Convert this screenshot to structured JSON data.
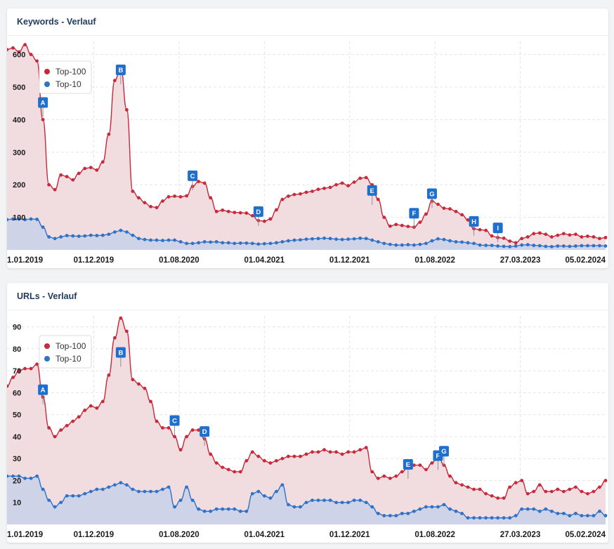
{
  "colors": {
    "top100": "#c8293b",
    "top100_fill": "#f1dde0",
    "top10": "#2f73c9",
    "top10_fill": "#cfd3e8",
    "marker": "#1f6fcf"
  },
  "legend": [
    "Top-100",
    "Top-10"
  ],
  "x_labels": [
    "1.01.2019",
    "01.12.2019",
    "01.08.2020",
    "01.04.2021",
    "01.12.2021",
    "01.08.2022",
    "27.03.2023",
    "05.02.2024"
  ],
  "chart_data": [
    {
      "type": "area",
      "title": "Keywords - Verlauf",
      "ylim": [
        0,
        640
      ],
      "yticks": [
        100,
        200,
        300,
        400,
        500,
        600
      ],
      "series": [
        {
          "name": "Top-100",
          "values": [
            615,
            620,
            608,
            630,
            600,
            580,
            400,
            200,
            185,
            230,
            225,
            215,
            235,
            250,
            253,
            245,
            270,
            355,
            520,
            560,
            430,
            180,
            160,
            145,
            133,
            130,
            150,
            163,
            165,
            163,
            166,
            195,
            210,
            205,
            160,
            118,
            122,
            118,
            115,
            114,
            113,
            105,
            90,
            88,
            95,
            123,
            155,
            165,
            170,
            172,
            177,
            180,
            186,
            189,
            192,
            200,
            205,
            197,
            208,
            220,
            222,
            200,
            155,
            100,
            73,
            78,
            75,
            72,
            70,
            85,
            110,
            150,
            140,
            128,
            126,
            118,
            108,
            92,
            65,
            62,
            60,
            43,
            38,
            36,
            27,
            22,
            35,
            40,
            50,
            52,
            48,
            40,
            45,
            50,
            46,
            48,
            40,
            42,
            40,
            35,
            38
          ]
        },
        {
          "name": "Top-10",
          "values": [
            93,
            95,
            95,
            93,
            95,
            94,
            70,
            40,
            35,
            40,
            44,
            43,
            42,
            43,
            45,
            44,
            45,
            48,
            55,
            60,
            55,
            45,
            35,
            32,
            30,
            30,
            29,
            30,
            30,
            25,
            20,
            20,
            22,
            25,
            24,
            25,
            22,
            22,
            20,
            21,
            21,
            20,
            18,
            19,
            20,
            22,
            25,
            28,
            30,
            31,
            33,
            34,
            35,
            36,
            35,
            33,
            32,
            33,
            34,
            36,
            35,
            30,
            25,
            20,
            17,
            15,
            15,
            16,
            15,
            17,
            20,
            28,
            34,
            32,
            28,
            25,
            24,
            22,
            20,
            15,
            14,
            14,
            12,
            11,
            10,
            12,
            15,
            16,
            14,
            13,
            11,
            10,
            12,
            12,
            11,
            12,
            13,
            13,
            13,
            13,
            12
          ]
        }
      ],
      "annotations": [
        {
          "label": "A",
          "x": 6,
          "y": 430
        },
        {
          "label": "B",
          "x": 19,
          "y": 530
        },
        {
          "label": "C",
          "x": 31,
          "y": 205
        },
        {
          "label": "D",
          "x": 42,
          "y": 95
        },
        {
          "label": "E",
          "x": 61,
          "y": 160
        },
        {
          "label": "F",
          "x": 68,
          "y": 90
        },
        {
          "label": "G",
          "x": 71,
          "y": 150
        },
        {
          "label": "H",
          "x": 78,
          "y": 65
        },
        {
          "label": "I",
          "x": 82,
          "y": 45
        }
      ]
    },
    {
      "type": "area",
      "title": "URLs - Verlauf",
      "ylim": [
        0,
        95
      ],
      "yticks": [
        10,
        20,
        30,
        40,
        50,
        60,
        70,
        80,
        90
      ],
      "series": [
        {
          "name": "Top-100",
          "values": [
            63,
            67,
            70,
            71,
            71,
            73,
            58,
            44,
            40,
            43,
            45,
            47,
            49,
            52,
            54,
            53,
            56,
            68,
            85,
            94,
            88,
            66,
            64,
            62,
            56,
            47,
            44,
            44,
            40,
            34,
            40,
            43,
            43,
            39,
            32,
            28,
            26,
            25,
            24,
            24,
            29,
            33,
            31,
            29,
            28,
            29,
            30,
            31,
            31,
            31,
            32,
            33,
            33,
            34,
            33,
            33,
            32,
            33,
            33,
            34,
            35,
            24,
            21,
            22,
            21,
            22,
            24,
            26,
            27,
            27,
            25,
            28,
            32,
            27,
            22,
            19,
            18,
            17,
            16,
            16,
            14,
            13,
            12,
            12,
            17,
            19,
            20,
            14,
            15,
            18,
            15,
            15,
            16,
            15,
            16,
            17,
            15,
            14,
            15,
            17,
            20
          ]
        },
        {
          "name": "Top-10",
          "values": [
            22,
            22,
            22,
            21,
            21,
            22,
            16,
            11,
            8,
            10,
            13,
            13,
            13,
            14,
            15,
            16,
            16,
            17,
            18,
            19,
            18,
            16,
            15,
            15,
            15,
            15,
            16,
            17,
            8,
            11,
            17,
            11,
            7,
            6,
            6,
            7,
            7,
            7,
            7,
            6,
            6,
            14,
            15,
            13,
            12,
            15,
            18,
            9,
            8,
            8,
            10,
            11,
            11,
            11,
            11,
            10,
            10,
            10,
            11,
            11,
            10,
            8,
            5,
            4,
            4,
            4,
            5,
            5,
            6,
            7,
            8,
            8,
            8,
            9,
            7,
            6,
            5,
            3,
            3,
            3,
            3,
            3,
            3,
            3,
            3,
            4,
            7,
            7,
            7,
            6,
            7,
            6,
            5,
            5,
            4,
            5,
            4,
            4,
            4,
            6,
            4
          ]
        }
      ],
      "annotations": [
        {
          "label": "A",
          "x": 6,
          "y": 58
        },
        {
          "label": "B",
          "x": 19,
          "y": 75
        },
        {
          "label": "C",
          "x": 28,
          "y": 44
        },
        {
          "label": "D",
          "x": 33,
          "y": 39
        },
        {
          "label": "E",
          "x": 67,
          "y": 24
        },
        {
          "label": "F",
          "x": 72,
          "y": 28
        },
        {
          "label": "G",
          "x": 73,
          "y": 30
        }
      ]
    }
  ]
}
